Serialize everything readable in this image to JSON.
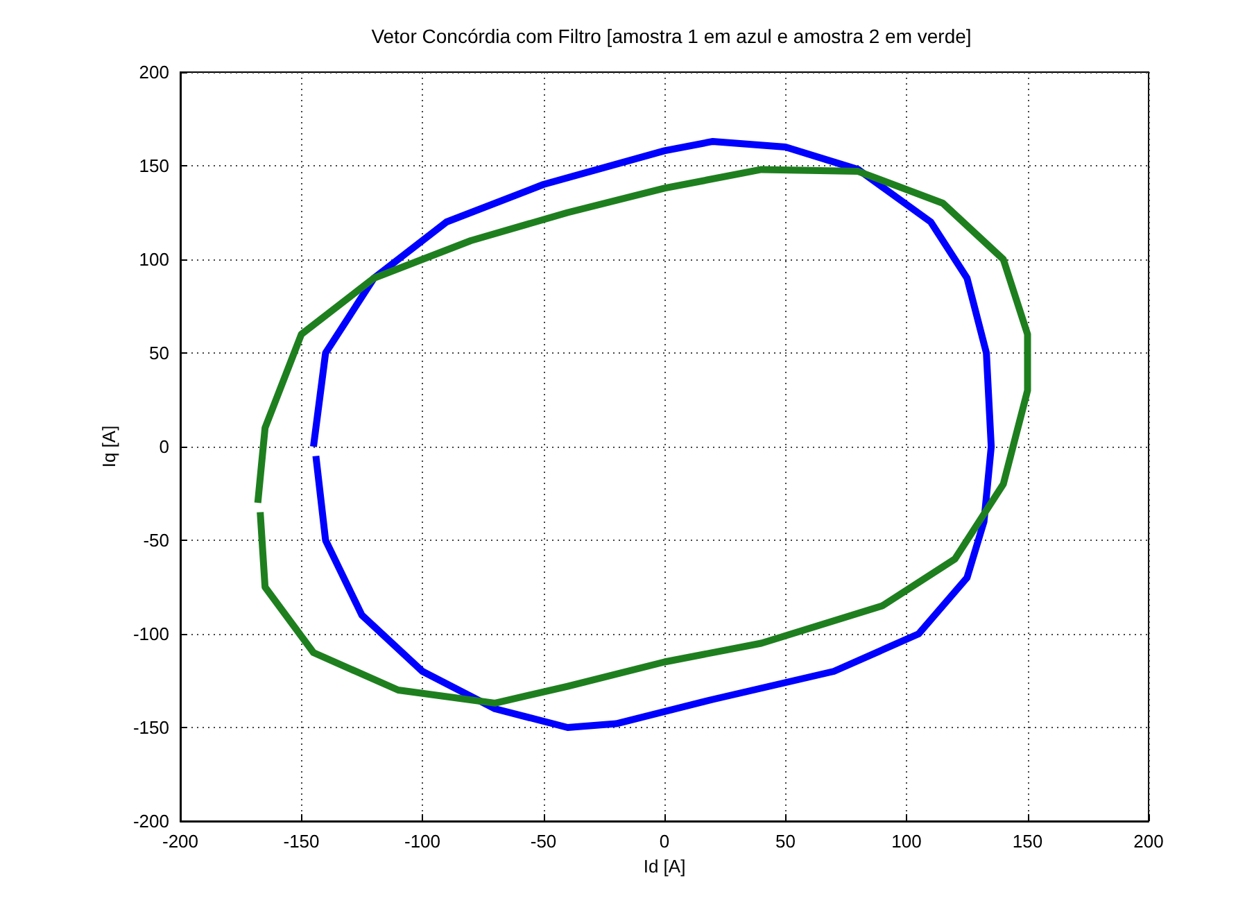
{
  "chart_data": {
    "type": "line",
    "title": "Vetor Concórdia com Filtro [amostra 1 em azul e amostra 2 em verde]",
    "xlabel": "Id [A]",
    "ylabel": "Iq [A]",
    "xlim": [
      -200,
      200
    ],
    "ylim": [
      -200,
      200
    ],
    "xticks": [
      -200,
      -150,
      -100,
      -50,
      0,
      50,
      100,
      150,
      200
    ],
    "yticks": [
      -200,
      -150,
      -100,
      -50,
      0,
      50,
      100,
      150,
      200
    ],
    "grid": true,
    "marker": "none",
    "line_style": "solid",
    "series": [
      {
        "color": "#0000ff",
        "x": [
          -145,
          -140,
          -120,
          -90,
          -50,
          0,
          20,
          50,
          80,
          110,
          125,
          133,
          135,
          132,
          125,
          105,
          70,
          20,
          -20,
          -40,
          -70,
          -100,
          -125,
          -140,
          -144
        ],
        "values": [
          0,
          50,
          90,
          120,
          140,
          158,
          163,
          160,
          148,
          120,
          90,
          50,
          0,
          -40,
          -70,
          -100,
          -120,
          -135,
          -148,
          -150,
          -140,
          -120,
          -90,
          -50,
          -5
        ]
      },
      {
        "color": "#1e7f1e",
        "x": [
          -168,
          -165,
          -150,
          -120,
          -80,
          -40,
          0,
          40,
          80,
          115,
          140,
          150,
          150,
          140,
          120,
          90,
          40,
          0,
          -40,
          -70,
          -110,
          -145,
          -165,
          -167
        ],
        "values": [
          -30,
          10,
          60,
          90,
          110,
          125,
          138,
          148,
          147,
          130,
          100,
          60,
          30,
          -20,
          -60,
          -85,
          -105,
          -115,
          -128,
          -137,
          -130,
          -110,
          -75,
          -35
        ]
      }
    ]
  }
}
